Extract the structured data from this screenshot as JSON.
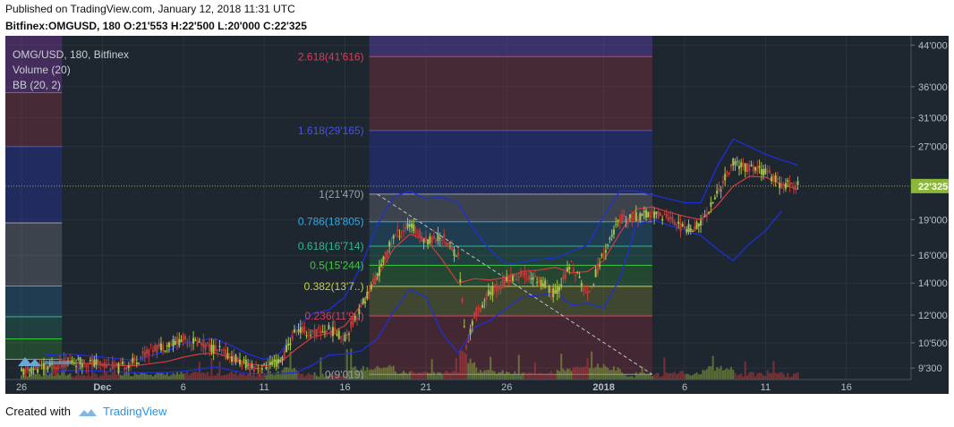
{
  "header": {
    "line1": "Published on TradingView.com, January 12, 2018 11:31 UTC",
    "line2": "Bitfinex:OMGUSD, 180  O:21'553  H:22'500  L:20'000  C:22'325"
  },
  "legend": {
    "title": "OMG/USD, 180, Bitfinex",
    "volume": "Volume (20)",
    "bb": "BB (20, 2)"
  },
  "colors": {
    "background": "#1e262f",
    "candle_up": "#a6c24b",
    "candle_down": "#c23b3b",
    "bb_band": "#1f2fd6",
    "bb_basis": "#d83a3a",
    "current_price": "#8bb83a"
  },
  "chart_data": {
    "type": "candlestick",
    "symbol": "OMGUSD",
    "exchange": "Bitfinex",
    "interval": "180",
    "y_axis": {
      "scale": "log",
      "tick_labels": [
        "44'000",
        "36'000",
        "31'000",
        "27'000",
        "19'000",
        "16'000",
        "14'000",
        "12'000",
        "10'500",
        "9'300"
      ],
      "tick_values": [
        44000,
        36000,
        31000,
        27000,
        19000,
        16000,
        14000,
        12000,
        10500,
        9300
      ],
      "range": [
        8800,
        46000
      ]
    },
    "x_axis": {
      "tick_labels": [
        "26",
        "Dec",
        "6",
        "11",
        "16",
        "21",
        "26",
        "2018",
        "6",
        "11",
        "16"
      ],
      "tick_days": [
        -5,
        0,
        5,
        10,
        15,
        20,
        25,
        31,
        36,
        41,
        46
      ],
      "range_days": [
        -6,
        50
      ]
    },
    "current_price": {
      "label": "22'325",
      "value": 22325
    },
    "fib_main": {
      "start_day": 16.5,
      "end_day": 34,
      "from": {
        "day": 17,
        "value": 21470
      },
      "to": {
        "day": 34,
        "value": 9019
      },
      "levels": [
        {
          "label": "2.618(41'616)",
          "value": 41616,
          "color": "#e0395a",
          "fill": "rgba(230,60,80,0.2)"
        },
        {
          "label": "1.618(29'165)",
          "value": 29165,
          "color": "#4553e8",
          "fill": "rgba(40,55,190,0.33)"
        },
        {
          "label": "1(21'470)",
          "value": 21470,
          "color": "#9aa0a6",
          "fill": "rgba(180,185,195,0.2)"
        },
        {
          "label": "0.786(18'805)",
          "value": 18805,
          "color": "#35a9e0",
          "fill": "rgba(40,150,215,0.2)"
        },
        {
          "label": "0.618(16'714)",
          "value": 16714,
          "color": "#30b890",
          "fill": "rgba(35,160,120,0.22)"
        },
        {
          "label": "0.5(15'244)",
          "value": 15244,
          "color": "#3ec93e",
          "fill": "rgba(60,190,60,0.22)"
        },
        {
          "label": "0.382(13'7..)",
          "value": 13780,
          "color": "#c9d33a",
          "fill": "rgba(200,205,60,0.2)"
        },
        {
          "label": "0.236(11'9..)",
          "value": 11950,
          "color": "#e0395a",
          "fill": "rgba(215,50,70,0.2)"
        },
        {
          "label": "0(9'019)",
          "value": 9019,
          "color": "#9aa0a6",
          "fill": null
        }
      ]
    },
    "fib_left": {
      "start_day": -6,
      "end_day": -2.5,
      "levels": [
        {
          "value": 46000,
          "fill": "rgba(140,60,180,0.35)",
          "color": null
        },
        {
          "value": 35000,
          "fill": "rgba(230,60,80,0.2)",
          "color": "#e0395a"
        },
        {
          "value": 27000,
          "fill": "rgba(40,55,190,0.33)",
          "color": "#4553e8"
        },
        {
          "value": 18700,
          "fill": "rgba(180,185,195,0.2)",
          "color": "#9aa0a6"
        },
        {
          "value": 13800,
          "fill": "rgba(40,150,215,0.2)",
          "color": "#35a9e0"
        },
        {
          "value": 11900,
          "fill": "rgba(35,160,120,0.22)",
          "color": "#30b890"
        },
        {
          "value": 10700,
          "fill": "rgba(60,190,60,0.22)",
          "color": "#3ec93e"
        },
        {
          "value": 9700,
          "fill": null,
          "color": "#9aa0a6"
        }
      ]
    },
    "bb_upper": [
      [
        -3.5,
        9900
      ],
      [
        -2,
        9950
      ],
      [
        0,
        9800
      ],
      [
        2,
        9650
      ],
      [
        4,
        10100
      ],
      [
        5,
        10450
      ],
      [
        6,
        10650
      ],
      [
        7,
        10700
      ],
      [
        8,
        10350
      ],
      [
        9,
        9950
      ],
      [
        10,
        9700
      ],
      [
        11,
        10000
      ],
      [
        12,
        11300
      ],
      [
        13,
        12100
      ],
      [
        14,
        12300
      ],
      [
        15,
        13100
      ],
      [
        16,
        15200
      ],
      [
        17,
        18500
      ],
      [
        18,
        21200
      ],
      [
        19,
        21800
      ],
      [
        20,
        21000
      ],
      [
        21,
        21200
      ],
      [
        22,
        20600
      ],
      [
        23,
        18000
      ],
      [
        24,
        16400
      ],
      [
        25,
        15300
      ],
      [
        26,
        15500
      ],
      [
        27,
        15700
      ],
      [
        28,
        15800
      ],
      [
        29,
        16300
      ],
      [
        30,
        16800
      ],
      [
        31,
        19300
      ],
      [
        32,
        21800
      ],
      [
        33,
        21800
      ],
      [
        34,
        21400
      ],
      [
        35,
        21000
      ],
      [
        36,
        20600
      ],
      [
        37,
        20600
      ],
      [
        38,
        24500
      ],
      [
        39,
        28000
      ],
      [
        40,
        27000
      ],
      [
        41,
        26000
      ],
      [
        42,
        25300
      ],
      [
        43,
        24700
      ]
    ],
    "bb_lower": [
      [
        -3.5,
        9100
      ],
      [
        -2,
        9200
      ],
      [
        0,
        9150
      ],
      [
        2,
        9100
      ],
      [
        4,
        9100
      ],
      [
        5,
        9150
      ],
      [
        6,
        9250
      ],
      [
        7,
        9350
      ],
      [
        8,
        9200
      ],
      [
        9,
        9050
      ],
      [
        10,
        9050
      ],
      [
        11,
        9050
      ],
      [
        12,
        9100
      ],
      [
        13,
        9450
      ],
      [
        14,
        9900
      ],
      [
        15,
        9950
      ],
      [
        16,
        10100
      ],
      [
        17,
        10700
      ],
      [
        18,
        12200
      ],
      [
        19,
        13600
      ],
      [
        20,
        13100
      ],
      [
        21,
        11000
      ],
      [
        22,
        10000
      ],
      [
        23,
        11300
      ],
      [
        24,
        11700
      ],
      [
        25,
        12400
      ],
      [
        26,
        13100
      ],
      [
        27,
        13200
      ],
      [
        28,
        13400
      ],
      [
        29,
        12600
      ],
      [
        30,
        12700
      ],
      [
        31,
        12400
      ],
      [
        32,
        14300
      ],
      [
        33,
        18500
      ],
      [
        34,
        19000
      ],
      [
        35,
        18500
      ],
      [
        36,
        18100
      ],
      [
        37,
        17600
      ],
      [
        38,
        16500
      ],
      [
        39,
        15600
      ],
      [
        40,
        16900
      ],
      [
        41,
        18000
      ],
      [
        42,
        19800
      ]
    ],
    "bb_basis": [
      [
        -3.5,
        9500
      ],
      [
        -2,
        9550
      ],
      [
        0,
        9450
      ],
      [
        2,
        9400
      ],
      [
        4,
        9600
      ],
      [
        5,
        9800
      ],
      [
        6,
        9950
      ],
      [
        7,
        10000
      ],
      [
        8,
        9750
      ],
      [
        9,
        9500
      ],
      [
        10,
        9400
      ],
      [
        11,
        9550
      ],
      [
        12,
        10200
      ],
      [
        13,
        10800
      ],
      [
        14,
        11000
      ],
      [
        15,
        11400
      ],
      [
        16,
        12600
      ],
      [
        17,
        14400
      ],
      [
        18,
        16500
      ],
      [
        19,
        17700
      ],
      [
        20,
        17300
      ],
      [
        21,
        15700
      ],
      [
        22,
        14000
      ],
      [
        23,
        14300
      ],
      [
        24,
        14200
      ],
      [
        25,
        14400
      ],
      [
        26,
        14800
      ],
      [
        27,
        14900
      ],
      [
        28,
        15100
      ],
      [
        29,
        14700
      ],
      [
        30,
        14800
      ],
      [
        31,
        15600
      ],
      [
        32,
        17800
      ],
      [
        33,
        20000
      ],
      [
        34,
        20200
      ],
      [
        35,
        19700
      ],
      [
        36,
        19300
      ],
      [
        37,
        19000
      ],
      [
        38,
        20300
      ],
      [
        39,
        22300
      ],
      [
        40,
        23400
      ],
      [
        41,
        23300
      ],
      [
        42,
        22500
      ],
      [
        43,
        22000
      ]
    ],
    "price_path": [
      [
        -5,
        9100
      ],
      [
        -4,
        9300
      ],
      [
        -3,
        9400
      ],
      [
        -2,
        9600
      ],
      [
        0,
        9500
      ],
      [
        1,
        9300
      ],
      [
        2,
        9600
      ],
      [
        3,
        10200
      ],
      [
        4,
        10400
      ],
      [
        5,
        10700
      ],
      [
        6,
        10500
      ],
      [
        7,
        10200
      ],
      [
        8,
        9800
      ],
      [
        9,
        9400
      ],
      [
        10,
        9300
      ],
      [
        11,
        9600
      ],
      [
        12,
        11200
      ],
      [
        13,
        11000
      ],
      [
        14,
        11200
      ],
      [
        15,
        10800
      ],
      [
        16,
        12500
      ],
      [
        17,
        14500
      ],
      [
        18,
        17500
      ],
      [
        19,
        18500
      ],
      [
        20,
        17200
      ],
      [
        21,
        17500
      ],
      [
        22,
        16000
      ],
      [
        22.5,
        10200
      ],
      [
        23,
        12000
      ],
      [
        24,
        13400
      ],
      [
        25,
        14200
      ],
      [
        26,
        14600
      ],
      [
        27,
        14200
      ],
      [
        28,
        13300
      ],
      [
        29,
        15300
      ],
      [
        30,
        13200
      ],
      [
        31,
        16200
      ],
      [
        32,
        19000
      ],
      [
        33,
        19200
      ],
      [
        34,
        19500
      ],
      [
        35,
        19300
      ],
      [
        36,
        18100
      ],
      [
        37,
        18600
      ],
      [
        38,
        21500
      ],
      [
        39,
        25000
      ],
      [
        40,
        24300
      ],
      [
        41,
        24000
      ],
      [
        42,
        22500
      ],
      [
        43,
        22325
      ]
    ],
    "volume_note": "volume bars at bottom of pane"
  },
  "footer": {
    "created_with": "Created with",
    "brand": "TradingView"
  }
}
